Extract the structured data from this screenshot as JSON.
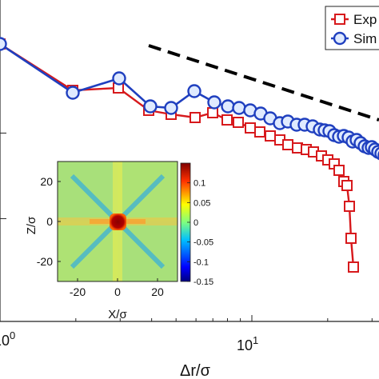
{
  "chart_data": {
    "type": "line",
    "x_scale": "log",
    "y_scale": "log",
    "xlabel": "Δr/σ",
    "ylabel": "",
    "xlim": [
      0.93,
      40
    ],
    "ylim": [
      0.0025,
      3
    ],
    "x_tick_labels": [
      "10^0",
      "10^1"
    ],
    "legend_placement": "top-right",
    "series": [
      {
        "name": "Exp",
        "color": "#d7191c",
        "marker": "square",
        "x": [
          1,
          2,
          3,
          4,
          5,
          6,
          7,
          8,
          9,
          10,
          11,
          12,
          13,
          14,
          15,
          16,
          17,
          18,
          19,
          20,
          21,
          22,
          23,
          24,
          25,
          26
        ],
        "y": [
          1.1,
          0.58,
          0.85,
          0.63,
          0.53,
          0.43,
          0.41,
          0.38,
          0.37,
          0.32,
          0.29,
          0.25,
          0.22,
          0.19,
          0.16,
          0.14,
          0.125,
          0.11,
          0.097,
          0.085,
          0.07,
          0.06,
          0.045,
          0.025,
          0.01,
          0.0035
        ]
      },
      {
        "name": "Sim",
        "color": "#1f3fbf",
        "marker": "circle",
        "x": [
          1,
          2,
          3,
          4,
          5,
          6,
          7,
          8,
          9,
          10,
          11,
          12,
          13,
          14,
          15,
          16,
          17,
          18,
          19,
          20,
          21,
          22,
          23,
          24,
          25,
          26,
          27,
          28,
          29,
          30,
          31,
          32,
          33,
          34,
          35,
          36
        ],
        "y": [
          1.1,
          0.63,
          0.92,
          0.54,
          0.53,
          0.56,
          0.53,
          0.48,
          0.44,
          0.41,
          0.385,
          0.37,
          0.35,
          0.335,
          0.32,
          0.3,
          0.28,
          0.26,
          0.245,
          0.235,
          0.22,
          0.205,
          0.195,
          0.185,
          0.175,
          0.165,
          0.158,
          0.15,
          0.142,
          0.135,
          0.128,
          0.122,
          0.117,
          0.112,
          0.107,
          0.102
        ]
      }
    ],
    "reference_line": {
      "style": "dashed",
      "color": "#000000",
      "x": [
        9,
        40
      ],
      "y": [
        0.0,
        0.0
      ]
    },
    "inset": {
      "type": "heatmap",
      "xlabel": "X/σ",
      "ylabel": "Z/σ",
      "x_ticks": [
        -20,
        0,
        20
      ],
      "y_ticks": [
        20,
        0,
        -20
      ],
      "xlim": [
        -30,
        30
      ],
      "ylim": [
        -30,
        30
      ],
      "colorbar_ticks": [
        0.1,
        0.05,
        0,
        -0.05,
        -0.1,
        -0.15
      ],
      "colorbar_range": [
        -0.15,
        0.15
      ]
    }
  }
}
